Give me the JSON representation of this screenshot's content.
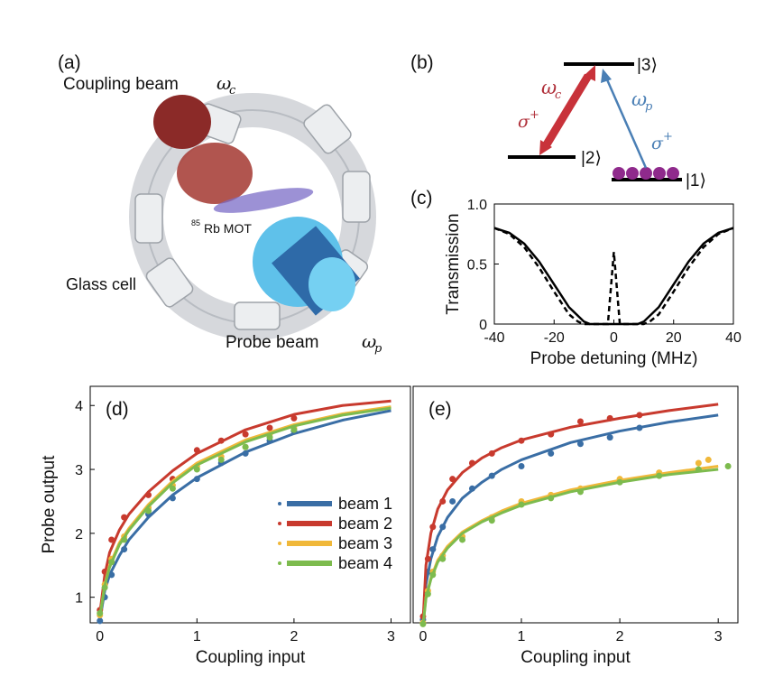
{
  "panel_a": {
    "label": "(a)",
    "coupling_beam": "Coupling beam",
    "coupling_symbol": "ω",
    "coupling_sub": "c",
    "mot_sup": "85",
    "mot_label": "Rb MOT",
    "glass_cell": "Glass cell",
    "probe_beam": "Probe beam",
    "probe_symbol": "ω",
    "probe_sub": "p"
  },
  "panel_b": {
    "label": "(b)",
    "level3": "|3⟩",
    "level2": "|2⟩",
    "level1": "|1⟩",
    "omega_c": "ω",
    "omega_c_sub": "c",
    "omega_p": "ω",
    "omega_p_sub": "p",
    "sigma_left": "σ",
    "sigma_right": "σ",
    "sigma_sup": "+"
  },
  "chart_data": [
    {
      "panel": "(c)",
      "type": "line",
      "xlabel": "Probe detuning (MHz)",
      "ylabel": "Transmission",
      "xlim": [
        -40,
        40
      ],
      "ylim": [
        0,
        1
      ],
      "xticks": [
        "-40",
        "-20",
        "0",
        "20",
        "40"
      ],
      "yticks": [
        "0",
        "0.5",
        "1.0"
      ],
      "series": [
        {
          "style": "solid",
          "color": "#000000",
          "x": [
            -40,
            -35,
            -30,
            -25,
            -20,
            -15,
            -10,
            -8,
            -5,
            0,
            5,
            8,
            10,
            15,
            20,
            25,
            30,
            35,
            40
          ],
          "y": [
            0.8,
            0.76,
            0.67,
            0.52,
            0.33,
            0.14,
            0.02,
            0.0,
            0.0,
            0.0,
            0.0,
            0.0,
            0.02,
            0.14,
            0.33,
            0.52,
            0.67,
            0.76,
            0.8
          ]
        },
        {
          "style": "dashed",
          "color": "#000000",
          "x": [
            -40,
            -35,
            -30,
            -25,
            -20,
            -15,
            -12,
            -10,
            -5,
            -2,
            0,
            2,
            5,
            10,
            12,
            15,
            20,
            25,
            30,
            35,
            40
          ],
          "y": [
            0.8,
            0.75,
            0.64,
            0.47,
            0.27,
            0.08,
            0.02,
            0.0,
            0.0,
            0.0,
            0.6,
            0.0,
            0.0,
            0.0,
            0.02,
            0.08,
            0.27,
            0.47,
            0.64,
            0.75,
            0.8
          ]
        }
      ]
    },
    {
      "panel": "(d)",
      "type": "scatter",
      "xlabel": "Coupling input",
      "ylabel": "Probe output",
      "xlim": [
        -0.1,
        3.2
      ],
      "ylim": [
        0.6,
        4.3
      ],
      "xticks": [
        "0",
        "1",
        "2",
        "3"
      ],
      "yticks": [
        "1",
        "2",
        "3",
        "4"
      ],
      "legend": [
        "beam 1",
        "beam 2",
        "beam 3",
        "beam 4"
      ],
      "legend_position": "bottom-right",
      "series": [
        {
          "name": "beam 1",
          "color": "#3a6ea5",
          "fit_x": [
            0,
            0.05,
            0.1,
            0.2,
            0.3,
            0.5,
            0.75,
            1,
            1.5,
            2,
            2.5,
            3
          ],
          "fit_y": [
            0.65,
            1.1,
            1.35,
            1.65,
            1.9,
            2.25,
            2.6,
            2.87,
            3.27,
            3.56,
            3.77,
            3.92
          ],
          "x": [
            0,
            0.05,
            0.12,
            0.25,
            0.5,
            0.75,
            1,
            1.25,
            1.5,
            1.75,
            2
          ],
          "y": [
            0.63,
            1.0,
            1.35,
            1.75,
            2.3,
            2.55,
            2.85,
            3.1,
            3.25,
            3.45,
            3.6
          ]
        },
        {
          "name": "beam 2",
          "color": "#c83a2e",
          "fit_x": [
            0,
            0.05,
            0.1,
            0.2,
            0.3,
            0.5,
            0.75,
            1,
            1.5,
            2,
            2.5,
            3
          ],
          "fit_y": [
            0.75,
            1.35,
            1.7,
            2.05,
            2.3,
            2.65,
            2.98,
            3.25,
            3.62,
            3.86,
            4.0,
            4.07
          ],
          "x": [
            0,
            0.05,
            0.12,
            0.25,
            0.5,
            0.75,
            1,
            1.25,
            1.5,
            1.75,
            2
          ],
          "y": [
            0.8,
            1.4,
            1.9,
            2.25,
            2.6,
            2.85,
            3.3,
            3.45,
            3.55,
            3.65,
            3.8
          ]
        },
        {
          "name": "beam 3",
          "color": "#f0b83a",
          "fit_x": [
            0,
            0.05,
            0.1,
            0.2,
            0.3,
            0.5,
            0.75,
            1,
            1.5,
            2,
            2.5,
            3
          ],
          "fit_y": [
            0.7,
            1.2,
            1.5,
            1.85,
            2.08,
            2.45,
            2.82,
            3.1,
            3.46,
            3.7,
            3.87,
            3.98
          ],
          "x": [
            0,
            0.05,
            0.12,
            0.25,
            0.5,
            0.75,
            1,
            1.25,
            1.5,
            1.75,
            2
          ],
          "y": [
            0.72,
            1.2,
            1.6,
            1.95,
            2.4,
            2.75,
            3.05,
            3.2,
            3.35,
            3.55,
            3.65
          ]
        },
        {
          "name": "beam 4",
          "color": "#7dbb4e",
          "fit_x": [
            0,
            0.05,
            0.1,
            0.2,
            0.3,
            0.5,
            0.75,
            1,
            1.5,
            2,
            2.5,
            3
          ],
          "fit_y": [
            0.7,
            1.18,
            1.47,
            1.82,
            2.05,
            2.42,
            2.79,
            3.07,
            3.43,
            3.68,
            3.85,
            3.96
          ],
          "x": [
            0,
            0.05,
            0.12,
            0.25,
            0.5,
            0.75,
            1,
            1.25,
            1.5,
            1.75,
            2
          ],
          "y": [
            0.75,
            1.15,
            1.55,
            1.9,
            2.35,
            2.7,
            3.0,
            3.15,
            3.35,
            3.5,
            3.62
          ]
        }
      ]
    },
    {
      "panel": "(e)",
      "type": "scatter",
      "xlabel": "Coupling input",
      "ylabel": "",
      "xlim": [
        -0.1,
        3.2
      ],
      "ylim": [
        0.6,
        4.3
      ],
      "xticks": [
        "0",
        "1",
        "2",
        "3"
      ],
      "yticks": [],
      "series": [
        {
          "color": "#3a6ea5",
          "fit_x": [
            0,
            0.03,
            0.08,
            0.15,
            0.25,
            0.4,
            0.6,
            0.8,
            1,
            1.5,
            2,
            2.5,
            3
          ],
          "fit_y": [
            0.6,
            1.2,
            1.6,
            1.95,
            2.25,
            2.55,
            2.8,
            3.0,
            3.15,
            3.42,
            3.6,
            3.74,
            3.85
          ],
          "x": [
            0,
            0.05,
            0.1,
            0.2,
            0.3,
            0.5,
            0.7,
            1,
            1.3,
            1.6,
            1.9,
            2.2
          ],
          "y": [
            0.65,
            1.4,
            1.75,
            2.1,
            2.5,
            2.7,
            2.9,
            3.05,
            3.25,
            3.4,
            3.5,
            3.65
          ]
        },
        {
          "color": "#c83a2e",
          "fit_x": [
            0,
            0.03,
            0.08,
            0.15,
            0.25,
            0.4,
            0.6,
            0.8,
            1,
            1.5,
            2,
            2.5,
            3
          ],
          "fit_y": [
            0.6,
            1.5,
            2.0,
            2.38,
            2.68,
            2.95,
            3.18,
            3.34,
            3.46,
            3.66,
            3.8,
            3.92,
            4.02
          ],
          "x": [
            0,
            0.05,
            0.1,
            0.2,
            0.3,
            0.5,
            0.7,
            1,
            1.3,
            1.6,
            1.9,
            2.2
          ],
          "y": [
            0.7,
            1.6,
            2.1,
            2.5,
            2.85,
            3.1,
            3.25,
            3.45,
            3.55,
            3.75,
            3.8,
            3.85
          ]
        },
        {
          "color": "#f0b83a",
          "fit_x": [
            0,
            0.03,
            0.08,
            0.15,
            0.25,
            0.4,
            0.6,
            0.8,
            1,
            1.5,
            2,
            2.5,
            3
          ],
          "fit_y": [
            0.55,
            1.0,
            1.3,
            1.58,
            1.8,
            2.02,
            2.2,
            2.35,
            2.47,
            2.68,
            2.83,
            2.95,
            3.05
          ],
          "x": [
            0,
            0.05,
            0.1,
            0.2,
            0.4,
            0.7,
            1,
            1.3,
            1.6,
            2,
            2.4,
            2.8,
            2.9
          ],
          "y": [
            0.6,
            1.1,
            1.4,
            1.65,
            1.95,
            2.25,
            2.5,
            2.6,
            2.7,
            2.85,
            2.95,
            3.1,
            3.15
          ]
        },
        {
          "color": "#7dbb4e",
          "fit_x": [
            0,
            0.03,
            0.08,
            0.15,
            0.25,
            0.4,
            0.6,
            0.8,
            1,
            1.5,
            2,
            2.5,
            3
          ],
          "fit_y": [
            0.55,
            0.98,
            1.28,
            1.55,
            1.77,
            2.0,
            2.18,
            2.32,
            2.44,
            2.65,
            2.8,
            2.92,
            3.0
          ],
          "x": [
            0,
            0.05,
            0.1,
            0.2,
            0.4,
            0.7,
            1,
            1.3,
            1.6,
            2,
            2.4,
            2.8,
            3.1
          ],
          "y": [
            0.58,
            1.05,
            1.35,
            1.6,
            1.9,
            2.2,
            2.45,
            2.55,
            2.65,
            2.8,
            2.9,
            3.0,
            3.05
          ]
        }
      ]
    }
  ],
  "panel_labels": {
    "d": "(d)",
    "e": "(e)"
  }
}
